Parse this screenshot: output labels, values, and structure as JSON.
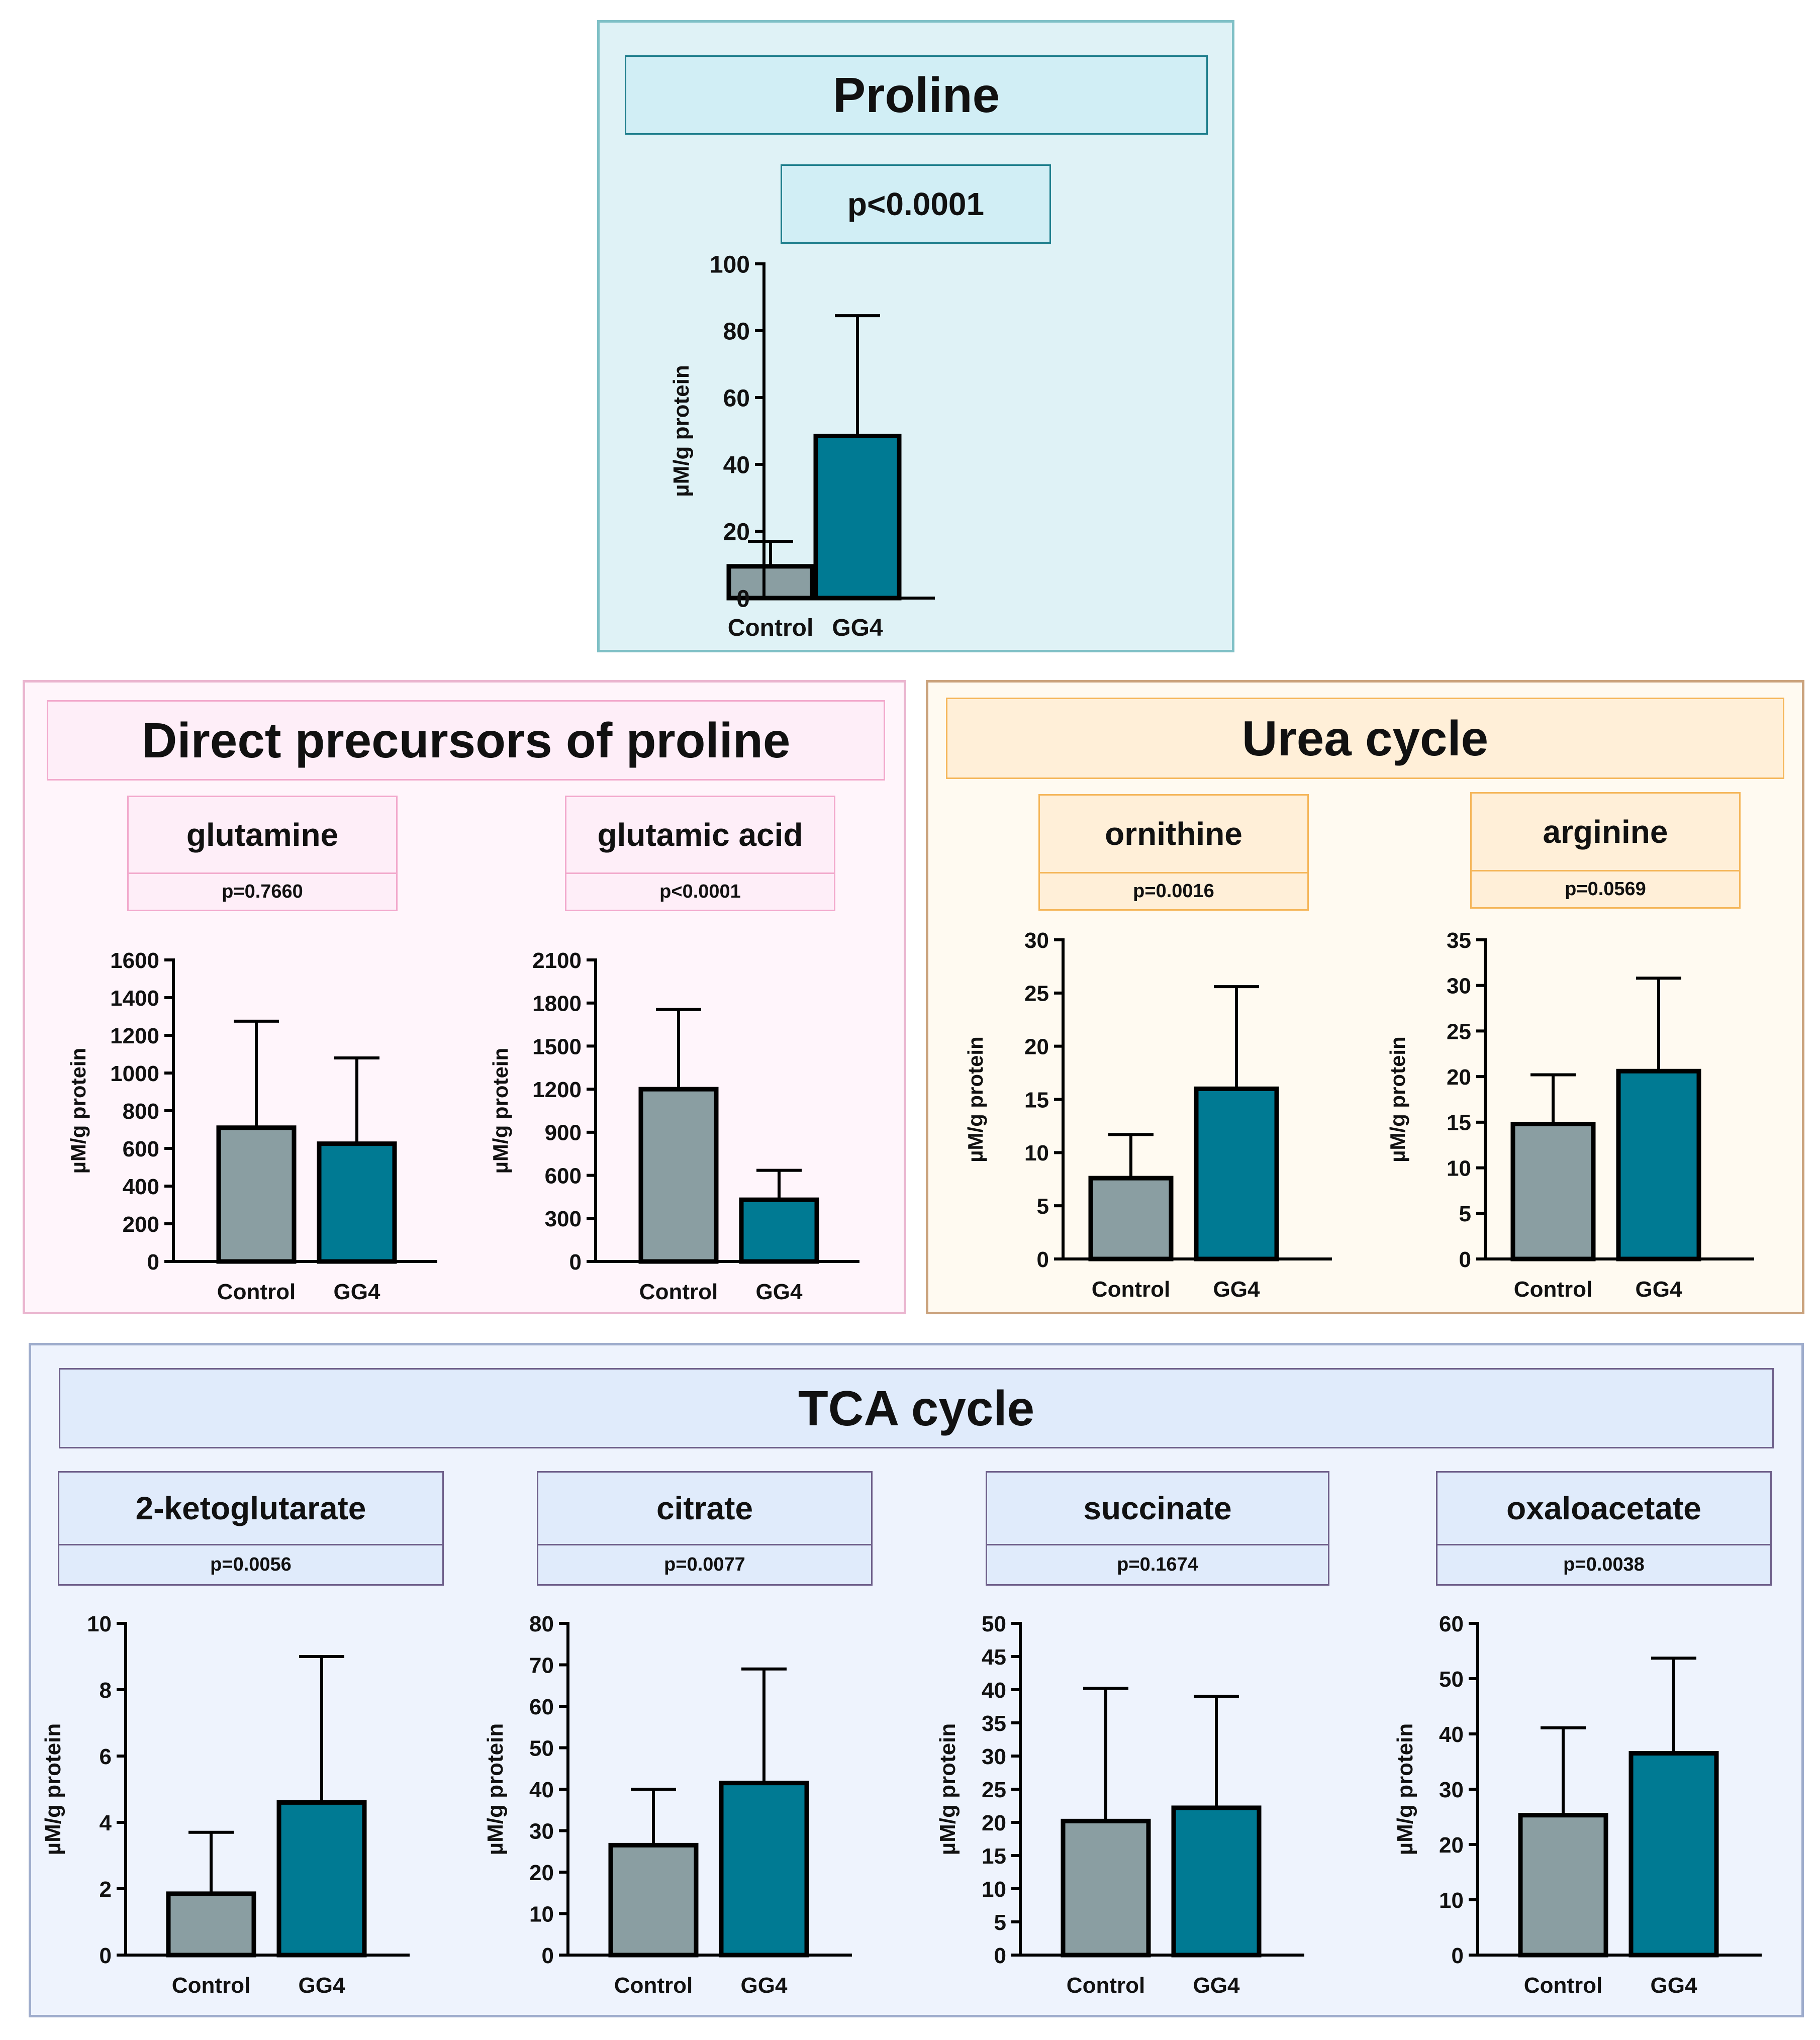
{
  "colors": {
    "control": "#8a9ea2",
    "gg4": "#007a93",
    "proline_bg": "#dff2f6",
    "proline_border": "#7fc0c6",
    "proline_box": "#d1eef5",
    "proline_box_border": "#1e7e8c",
    "precursor_bg": "#fff5fb",
    "precursor_border": "#eab5cf",
    "precursor_box": "#feeef8",
    "precursor_box_border": "#f2a9cc",
    "urea_bg": "#fffaf1",
    "urea_border": "#caa27c",
    "urea_box": "#ffefd8",
    "urea_box_border": "#f5b65a",
    "tca_bg": "#eef3fd",
    "tca_border": "#9eaccc",
    "tca_box": "#e0ebfb",
    "tca_box_border": "#6e5f8a"
  },
  "sections": {
    "proline": {
      "title": "Proline"
    },
    "precursors": {
      "title": "Direct precursors of proline"
    },
    "urea": {
      "title": "Urea cycle"
    },
    "tca": {
      "title": "TCA cycle"
    }
  },
  "chart_data": [
    {
      "id": "proline",
      "type": "bar",
      "title": "Proline",
      "p_value": "p<0.0001",
      "ylabel": "µM/g protein",
      "categories": [
        "Control",
        "GG4"
      ],
      "values": [
        9.5,
        48.5
      ],
      "errors": [
        7.5,
        36
      ],
      "ylim": [
        0,
        100
      ],
      "yticks": [
        0,
        20,
        40,
        60,
        80,
        100
      ]
    },
    {
      "id": "glutamine",
      "type": "bar",
      "title": "glutamine",
      "p_value": "p=0.7660",
      "ylabel": "µM/g protein",
      "categories": [
        "Control",
        "GG4"
      ],
      "values": [
        710,
        625
      ],
      "errors": [
        565,
        455
      ],
      "ylim": [
        0,
        1600
      ],
      "yticks": [
        0,
        200,
        400,
        600,
        800,
        1000,
        1200,
        1400,
        1600
      ]
    },
    {
      "id": "glutamic-acid",
      "type": "bar",
      "title": "glutamic acid",
      "p_value": "p<0.0001",
      "ylabel": "µM/g protein",
      "categories": [
        "Control",
        "GG4"
      ],
      "values": [
        1200,
        430
      ],
      "errors": [
        555,
        205
      ],
      "ylim": [
        0,
        2100
      ],
      "yticks": [
        0,
        300,
        600,
        900,
        1200,
        1500,
        1800,
        2100
      ]
    },
    {
      "id": "ornithine",
      "type": "bar",
      "title": "ornithine",
      "p_value": "p=0.0016",
      "ylabel": "µM/g protein",
      "categories": [
        "Control",
        "GG4"
      ],
      "values": [
        7.6,
        16
      ],
      "errors": [
        4.1,
        9.6
      ],
      "ylim": [
        0,
        30
      ],
      "yticks": [
        0,
        5,
        10,
        15,
        20,
        25,
        30
      ]
    },
    {
      "id": "arginine",
      "type": "bar",
      "title": "arginine",
      "p_value": "p=0.0569",
      "ylabel": "µM/g protein",
      "categories": [
        "Control",
        "GG4"
      ],
      "values": [
        14.8,
        20.6
      ],
      "errors": [
        5.4,
        10.2
      ],
      "ylim": [
        0,
        35
      ],
      "yticks": [
        0,
        5,
        10,
        15,
        20,
        25,
        30,
        35
      ]
    },
    {
      "id": "2-ketoglutarate",
      "type": "bar",
      "title": "2-ketoglutarate",
      "p_value": "p=0.0056",
      "ylabel": "µM/g protein",
      "categories": [
        "Control",
        "GG4"
      ],
      "values": [
        1.85,
        4.6
      ],
      "errors": [
        1.85,
        4.4
      ],
      "ylim": [
        0,
        10
      ],
      "yticks": [
        0,
        2,
        4,
        6,
        8,
        10
      ]
    },
    {
      "id": "citrate",
      "type": "bar",
      "title": "citrate",
      "p_value": "p=0.0077",
      "ylabel": "µM/g protein",
      "categories": [
        "Control",
        "GG4"
      ],
      "values": [
        26.5,
        41.5
      ],
      "errors": [
        13.5,
        27.5
      ],
      "ylim": [
        0,
        80
      ],
      "yticks": [
        0,
        10,
        20,
        30,
        40,
        50,
        60,
        70,
        80
      ]
    },
    {
      "id": "succinate",
      "type": "bar",
      "title": "succinate",
      "p_value": "p=0.1674",
      "ylabel": "µM/g protein",
      "categories": [
        "Control",
        "GG4"
      ],
      "values": [
        20.2,
        22.2
      ],
      "errors": [
        20,
        16.8
      ],
      "ylim": [
        0,
        50
      ],
      "yticks": [
        0,
        5,
        10,
        15,
        20,
        25,
        30,
        35,
        40,
        45,
        50
      ]
    },
    {
      "id": "oxaloacetate",
      "type": "bar",
      "title": "oxaloacetate",
      "p_value": "p=0.0038",
      "ylabel": "µM/g protein",
      "categories": [
        "Control",
        "GG4"
      ],
      "values": [
        25.3,
        36.5
      ],
      "errors": [
        15.8,
        17.2
      ],
      "ylim": [
        0,
        60
      ],
      "yticks": [
        0,
        10,
        20,
        30,
        40,
        50,
        60
      ]
    }
  ]
}
